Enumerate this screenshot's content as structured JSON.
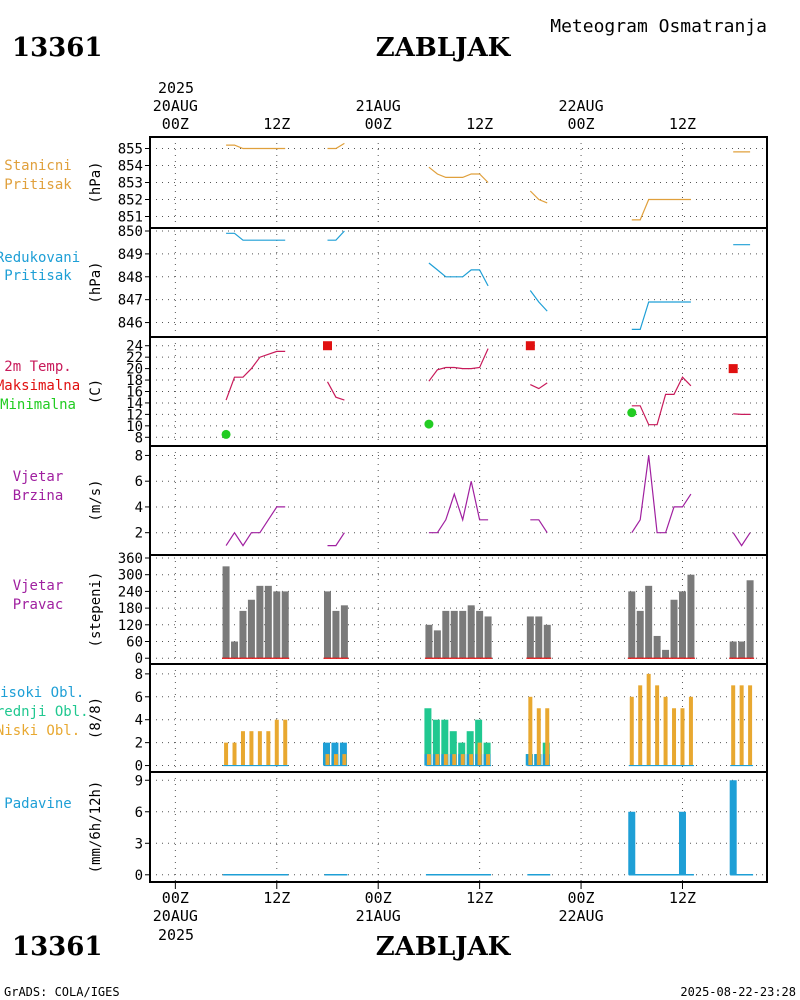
{
  "header": {
    "station_id": "13361",
    "station_name": "ZABLJAK",
    "meteogram_title": "Meteogram Osmatranja"
  },
  "footer": {
    "station_id": "13361",
    "station_name": "ZABLJAK",
    "grads_credit": "GrADS: COLA/IGES",
    "timestamp": "2025-08-22-23:28"
  },
  "time_axis": {
    "top_year": "2025",
    "bottom_year": "2025",
    "major_ticks": [
      {
        "hour": 0,
        "time": "00Z",
        "date": "20AUG"
      },
      {
        "hour": 12,
        "time": "12Z",
        "date": ""
      },
      {
        "hour": 24,
        "time": "00Z",
        "date": "21AUG"
      },
      {
        "hour": 36,
        "time": "12Z",
        "date": ""
      },
      {
        "hour": 48,
        "time": "00Z",
        "date": "22AUG"
      },
      {
        "hour": 60,
        "time": "12Z",
        "date": ""
      }
    ],
    "range_hours": [
      -3,
      70
    ]
  },
  "colors": {
    "station_pressure": "#e0a03c",
    "reduced_pressure": "#1e9fd6",
    "temperature": "#c81a5a",
    "max_temp": "#e01010",
    "min_temp": "#22cc22",
    "wind": "#a020a0",
    "wind_dir_bar": "#7a7a7a",
    "wind_dir_base": "#e01010",
    "high_cloud": "#1e9fd6",
    "mid_cloud": "#20c890",
    "low_cloud": "#e8a830",
    "precip": "#1e9fd6"
  },
  "chart_data": [
    {
      "type": "line",
      "title": "Stanicni Pritisak",
      "label_lines": [
        "Stanicni",
        "Pritisak"
      ],
      "ylabel": "(hPa)",
      "ylim": [
        850.5,
        855.5
      ],
      "ticks": [
        851,
        852,
        853,
        854,
        855
      ],
      "segments": [
        {
          "x": [
            6,
            7,
            8,
            9,
            10,
            11,
            12,
            13
          ],
          "y": [
            855.2,
            855.2,
            855.0,
            855.0,
            855.0,
            855.0,
            855.0,
            855.0
          ]
        },
        {
          "x": [
            18,
            19,
            20
          ],
          "y": [
            855.0,
            855.0,
            855.3
          ]
        },
        {
          "x": [
            30,
            31,
            32,
            33,
            34,
            35,
            36,
            37
          ],
          "y": [
            853.9,
            853.5,
            853.3,
            853.3,
            853.3,
            853.5,
            853.5,
            853.0
          ]
        },
        {
          "x": [
            42,
            43,
            44
          ],
          "y": [
            852.5,
            852.0,
            851.8
          ]
        },
        {
          "x": [
            54,
            55,
            56,
            57,
            58,
            59,
            60,
            61
          ],
          "y": [
            850.8,
            850.8,
            852.0,
            852.0,
            852.0,
            852.0,
            852.0,
            852.0
          ]
        },
        {
          "x": [
            66,
            67,
            68
          ],
          "y": [
            854.8,
            854.8,
            854.8
          ]
        }
      ]
    },
    {
      "type": "line",
      "title": "Redukovani Pritisak",
      "label_lines": [
        "Redukovani",
        "Pritisak"
      ],
      "ylabel": "(hPa)",
      "ylim": [
        845.5,
        850.0
      ],
      "ticks": [
        846,
        847,
        848,
        849,
        850
      ],
      "segments": [
        {
          "x": [
            6,
            7,
            8,
            9,
            10,
            11,
            12,
            13
          ],
          "y": [
            849.9,
            849.9,
            849.6,
            849.6,
            849.6,
            849.6,
            849.6,
            849.6
          ]
        },
        {
          "x": [
            18,
            19,
            20
          ],
          "y": [
            849.6,
            849.6,
            850.0
          ]
        },
        {
          "x": [
            30,
            31,
            32,
            33,
            34,
            35,
            36,
            37
          ],
          "y": [
            848.6,
            848.3,
            848.0,
            848.0,
            848.0,
            848.3,
            848.3,
            847.6
          ]
        },
        {
          "x": [
            42,
            43,
            44
          ],
          "y": [
            847.4,
            846.9,
            846.5
          ]
        },
        {
          "x": [
            54,
            55,
            56,
            57,
            58,
            59,
            60,
            61
          ],
          "y": [
            845.7,
            845.7,
            846.9,
            846.9,
            846.9,
            846.9,
            846.9,
            846.9
          ]
        },
        {
          "x": [
            66,
            67,
            68
          ],
          "y": [
            849.4,
            849.4,
            849.4
          ]
        }
      ]
    },
    {
      "type": "line",
      "title": "2m Temp. Maksimalna Minimalna",
      "label_lines": [
        "2m Temp.",
        "Maksimalna",
        "Minimalna"
      ],
      "ylabel": "(C)",
      "ylim": [
        7,
        25
      ],
      "ticks": [
        8,
        10,
        12,
        14,
        16,
        18,
        20,
        22,
        24
      ],
      "segments": [
        {
          "x": [
            6,
            7,
            8,
            9,
            10,
            11,
            12,
            13
          ],
          "y": [
            14.5,
            18.5,
            18.5,
            20.0,
            22.0,
            22.5,
            23.0,
            23.0
          ]
        },
        {
          "x": [
            18,
            19,
            20
          ],
          "y": [
            17.7,
            15.0,
            14.5
          ]
        },
        {
          "x": [
            30,
            31,
            32,
            33,
            34,
            35,
            36,
            37
          ],
          "y": [
            17.8,
            19.8,
            20.2,
            20.2,
            20.0,
            20.0,
            20.2,
            23.5
          ]
        },
        {
          "x": [
            42,
            43,
            44
          ],
          "y": [
            17.2,
            16.5,
            17.5
          ]
        },
        {
          "x": [
            54,
            55,
            56,
            57,
            58,
            59,
            60,
            61
          ],
          "y": [
            13.5,
            13.5,
            10.2,
            10.2,
            15.5,
            15.5,
            18.5,
            17.0
          ]
        },
        {
          "x": [
            66,
            67,
            68
          ],
          "y": [
            12.1,
            12.0,
            12.0
          ]
        }
      ],
      "max_points": [
        {
          "x": 18,
          "y": 24.0
        },
        {
          "x": 42,
          "y": 24.0
        },
        {
          "x": 66,
          "y": 20.0
        }
      ],
      "min_points": [
        {
          "x": 6,
          "y": 8.5
        },
        {
          "x": 30,
          "y": 10.3
        },
        {
          "x": 54,
          "y": 12.3
        }
      ]
    },
    {
      "type": "line",
      "title": "Vjetar Brzina",
      "label_lines": [
        "Vjetar",
        "Brzina"
      ],
      "ylabel": "(m/s)",
      "ylim": [
        0.5,
        8.5
      ],
      "ticks": [
        2,
        4,
        6,
        8
      ],
      "segments": [
        {
          "x": [
            6,
            7,
            8,
            9,
            10,
            11,
            12,
            13
          ],
          "y": [
            1,
            2,
            1,
            2,
            2,
            3,
            4,
            4
          ]
        },
        {
          "x": [
            18,
            19,
            20
          ],
          "y": [
            1,
            1,
            2
          ]
        },
        {
          "x": [
            30,
            31,
            32,
            33,
            34,
            35,
            36,
            37
          ],
          "y": [
            2,
            2,
            3,
            5,
            3,
            6,
            3,
            3
          ]
        },
        {
          "x": [
            42,
            43,
            44
          ],
          "y": [
            3,
            3,
            2
          ]
        },
        {
          "x": [
            54,
            55,
            56,
            57,
            58,
            59,
            60,
            61
          ],
          "y": [
            2,
            3,
            8,
            2,
            2,
            4,
            4,
            5
          ]
        },
        {
          "x": [
            66,
            67,
            68
          ],
          "y": [
            2,
            1,
            2
          ]
        }
      ]
    },
    {
      "type": "bar",
      "title": "Vjetar Pravac",
      "label_lines": [
        "Vjetar",
        "Pravac"
      ],
      "ylabel": "(stepeni)",
      "ylim": [
        -10,
        360
      ],
      "ticks": [
        0,
        60,
        120,
        180,
        240,
        300,
        360
      ],
      "x": [
        6,
        7,
        8,
        9,
        10,
        11,
        12,
        13,
        18,
        19,
        20,
        30,
        31,
        32,
        33,
        34,
        35,
        36,
        37,
        42,
        43,
        44,
        54,
        55,
        56,
        57,
        58,
        59,
        60,
        61,
        66,
        67,
        68
      ],
      "values": [
        330,
        60,
        170,
        210,
        260,
        260,
        240,
        240,
        240,
        170,
        190,
        120,
        100,
        170,
        170,
        170,
        190,
        170,
        150,
        150,
        150,
        120,
        240,
        170,
        260,
        80,
        30,
        210,
        240,
        300,
        60,
        60,
        280
      ]
    },
    {
      "type": "bar",
      "title": "Visoki Obl. Srednji Obl. Niski Obl.",
      "label_lines": [
        "Visoki Obl.",
        "Srednji Obl.",
        "Niski Obl."
      ],
      "ylabel": "(8/8)",
      "ylim": [
        -0.3,
        8.6
      ],
      "ticks": [
        0,
        2,
        4,
        6,
        8
      ],
      "x": [
        6,
        7,
        8,
        9,
        10,
        11,
        12,
        13,
        18,
        19,
        20,
        30,
        31,
        32,
        33,
        34,
        35,
        36,
        37,
        42,
        43,
        44,
        54,
        55,
        56,
        57,
        58,
        59,
        60,
        61,
        66,
        67,
        68
      ],
      "series": [
        {
          "name": "Visoki Obl.",
          "values": [
            0,
            0,
            0,
            0,
            0,
            0,
            0,
            0,
            2,
            2,
            2,
            1,
            1,
            1,
            1,
            1,
            1,
            1,
            1,
            1,
            1,
            1,
            0,
            0,
            0,
            0,
            0,
            0,
            0,
            0,
            0,
            0,
            0
          ]
        },
        {
          "name": "Srednji Obl.",
          "values": [
            0,
            0,
            0,
            0,
            0,
            0,
            0,
            0,
            1,
            1,
            1,
            5,
            4,
            4,
            3,
            2,
            3,
            4,
            2,
            1,
            1,
            2,
            0,
            0,
            0,
            0,
            0,
            0,
            0,
            0,
            0,
            0,
            0
          ]
        },
        {
          "name": "Niski Obl.",
          "values": [
            2,
            2,
            3,
            3,
            3,
            3,
            4,
            4,
            1,
            1,
            1,
            1,
            1,
            1,
            1,
            1,
            1,
            2,
            1,
            6,
            5,
            5,
            6,
            7,
            8,
            7,
            6,
            5,
            5,
            6,
            7,
            7,
            7
          ]
        }
      ]
    },
    {
      "type": "bar",
      "title": "Padavine",
      "label_lines": [
        "Padavine"
      ],
      "ylabel": "(mm/6h/12h)",
      "ylim": [
        -0.4,
        9.5
      ],
      "ticks": [
        0,
        3,
        6,
        9
      ],
      "x": [
        6,
        7,
        8,
        9,
        10,
        11,
        12,
        13,
        18,
        19,
        20,
        30,
        31,
        32,
        33,
        34,
        35,
        36,
        37,
        42,
        43,
        44,
        54,
        55,
        56,
        57,
        58,
        59,
        60,
        61,
        66,
        67,
        68
      ],
      "values": [
        0,
        0,
        0,
        0,
        0,
        0,
        0,
        0,
        0,
        0,
        0,
        0,
        0,
        0,
        0,
        0,
        0,
        0,
        0,
        0,
        0,
        0,
        6,
        0,
        0,
        0,
        0,
        0,
        6,
        0,
        9,
        0,
        0
      ]
    }
  ]
}
